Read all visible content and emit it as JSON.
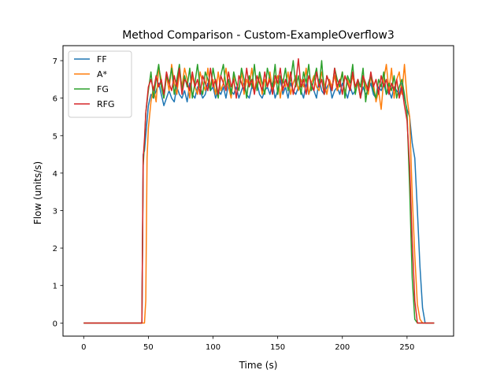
{
  "chart_data": {
    "type": "line",
    "title": "Method Comparison - Custom-ExampleOverflow3",
    "xlabel": "Time (s)",
    "ylabel": "Flow (units/s)",
    "xlim": [
      -16,
      286
    ],
    "ylim": [
      -0.35,
      7.4
    ],
    "xticks": [
      0,
      50,
      100,
      150,
      200,
      250
    ],
    "yticks": [
      0,
      1,
      2,
      3,
      4,
      5,
      6,
      7
    ],
    "grid": false,
    "legend_position": "top-left",
    "series": [
      {
        "name": "FF",
        "color": "#1f77b4",
        "x": [
          0,
          45,
          46,
          47,
          48,
          50,
          52,
          54,
          56,
          58,
          60,
          62,
          64,
          66,
          68,
          70,
          72,
          74,
          76,
          78,
          80,
          82,
          84,
          86,
          88,
          90,
          92,
          94,
          96,
          98,
          100,
          102,
          104,
          106,
          108,
          110,
          112,
          114,
          116,
          118,
          120,
          122,
          124,
          126,
          128,
          130,
          132,
          134,
          136,
          138,
          140,
          142,
          144,
          146,
          148,
          150,
          152,
          154,
          156,
          158,
          160,
          162,
          164,
          166,
          168,
          170,
          172,
          174,
          176,
          178,
          180,
          182,
          184,
          186,
          188,
          190,
          192,
          194,
          196,
          198,
          200,
          202,
          204,
          206,
          208,
          210,
          212,
          214,
          216,
          218,
          220,
          222,
          224,
          226,
          228,
          230,
          232,
          234,
          236,
          238,
          240,
          242,
          244,
          246,
          248,
          250,
          252,
          254,
          256,
          258,
          260,
          262,
          264,
          266,
          268,
          271
        ],
        "y": [
          0,
          0,
          4.5,
          4.6,
          5.0,
          5.8,
          6.1,
          6.0,
          6.2,
          6.4,
          6.1,
          5.8,
          6.0,
          6.2,
          6.0,
          5.9,
          6.3,
          6.1,
          6.0,
          6.2,
          5.9,
          6.4,
          6.1,
          6.0,
          6.3,
          6.2,
          6.0,
          6.1,
          6.4,
          6.2,
          6.3,
          6.0,
          6.2,
          6.1,
          6.3,
          6.0,
          6.4,
          6.2,
          6.1,
          6.3,
          6.0,
          6.2,
          6.4,
          6.1,
          6.0,
          6.3,
          6.2,
          6.4,
          6.1,
          6.0,
          6.2,
          6.3,
          6.1,
          6.4,
          6.0,
          6.2,
          6.5,
          6.1,
          6.3,
          6.0,
          6.4,
          6.2,
          6.1,
          6.3,
          6.2,
          6.0,
          6.4,
          6.1,
          6.3,
          6.2,
          6.0,
          6.5,
          6.2,
          6.1,
          6.3,
          6.4,
          6.0,
          6.2,
          6.3,
          6.1,
          6.4,
          6.2,
          6.0,
          6.3,
          6.1,
          6.2,
          6.4,
          6.0,
          6.3,
          6.1,
          6.2,
          6.4,
          6.1,
          6.0,
          6.3,
          6.2,
          6.4,
          6.1,
          6.2,
          6.0,
          6.3,
          6.2,
          6.1,
          6.4,
          6.0,
          5.7,
          5.5,
          4.8,
          4.4,
          3.0,
          1.5,
          0.4,
          0,
          0,
          0,
          0
        ]
      },
      {
        "name": "A*",
        "color": "#ff7f0e",
        "x": [
          0,
          47,
          48,
          49,
          50,
          52,
          54,
          56,
          58,
          60,
          62,
          64,
          66,
          68,
          70,
          72,
          74,
          76,
          78,
          80,
          82,
          84,
          86,
          88,
          90,
          92,
          94,
          96,
          98,
          100,
          102,
          104,
          106,
          108,
          110,
          112,
          114,
          116,
          118,
          120,
          122,
          124,
          126,
          128,
          130,
          132,
          134,
          136,
          138,
          140,
          142,
          144,
          146,
          148,
          150,
          152,
          154,
          156,
          158,
          160,
          162,
          164,
          166,
          168,
          170,
          172,
          174,
          176,
          178,
          180,
          182,
          184,
          186,
          188,
          190,
          192,
          194,
          196,
          198,
          200,
          202,
          204,
          206,
          208,
          210,
          212,
          214,
          216,
          218,
          220,
          222,
          224,
          226,
          228,
          230,
          232,
          234,
          236,
          238,
          240,
          242,
          244,
          246,
          248,
          250,
          252,
          254,
          256,
          258,
          260,
          262,
          264,
          266,
          268,
          271
        ],
        "y": [
          0,
          0,
          0.6,
          4.4,
          5.2,
          5.9,
          6.3,
          5.9,
          6.8,
          6.5,
          6.0,
          6.6,
          6.2,
          6.9,
          6.4,
          6.1,
          6.7,
          6.3,
          6.8,
          6.5,
          6.0,
          6.6,
          6.3,
          6.1,
          6.7,
          6.4,
          6.2,
          6.8,
          6.3,
          6.5,
          6.1,
          6.7,
          6.2,
          6.4,
          6.8,
          6.3,
          6.0,
          6.6,
          6.4,
          6.2,
          6.7,
          6.1,
          6.5,
          6.3,
          6.8,
          6.2,
          6.4,
          6.6,
          6.1,
          6.5,
          6.3,
          6.7,
          6.2,
          6.4,
          6.6,
          6.0,
          6.5,
          6.3,
          6.7,
          6.1,
          6.4,
          6.6,
          6.2,
          6.5,
          6.3,
          6.8,
          6.1,
          6.4,
          6.6,
          6.3,
          6.2,
          6.7,
          6.4,
          6.1,
          6.5,
          6.3,
          6.6,
          6.2,
          6.4,
          6.7,
          6.1,
          6.5,
          6.3,
          6.6,
          6.2,
          6.4,
          6.0,
          6.5,
          6.3,
          6.1,
          6.6,
          6.4,
          5.9,
          6.2,
          5.7,
          6.5,
          6.9,
          6.2,
          6.8,
          6.0,
          6.5,
          6.7,
          6.1,
          6.9,
          6.0,
          5.5,
          3.4,
          1.8,
          0.5,
          0.1,
          0,
          0,
          0,
          0,
          0
        ]
      },
      {
        "name": "FG",
        "color": "#2ca02c",
        "x": [
          0,
          45,
          46,
          47,
          48,
          50,
          52,
          54,
          56,
          58,
          60,
          62,
          64,
          66,
          68,
          70,
          72,
          74,
          76,
          78,
          80,
          82,
          84,
          86,
          88,
          90,
          92,
          94,
          96,
          98,
          100,
          102,
          104,
          106,
          108,
          110,
          112,
          114,
          116,
          118,
          120,
          122,
          124,
          126,
          128,
          130,
          132,
          134,
          136,
          138,
          140,
          142,
          144,
          146,
          148,
          150,
          152,
          154,
          156,
          158,
          160,
          162,
          164,
          166,
          168,
          170,
          172,
          174,
          176,
          178,
          180,
          182,
          184,
          186,
          188,
          190,
          192,
          194,
          196,
          198,
          200,
          202,
          204,
          206,
          208,
          210,
          212,
          214,
          216,
          218,
          220,
          222,
          224,
          226,
          228,
          230,
          232,
          234,
          236,
          238,
          240,
          242,
          244,
          246,
          248,
          250,
          252,
          254,
          256,
          258,
          260,
          262,
          264,
          266,
          268,
          271
        ],
        "y": [
          0,
          0,
          4.2,
          4.8,
          5.6,
          6.2,
          6.7,
          6.0,
          6.5,
          6.9,
          6.3,
          6.0,
          6.6,
          6.4,
          6.8,
          6.1,
          6.5,
          6.9,
          6.2,
          6.6,
          6.3,
          6.8,
          6.0,
          6.4,
          6.9,
          6.3,
          6.1,
          6.7,
          6.5,
          6.2,
          6.8,
          6.4,
          6.0,
          6.6,
          6.9,
          6.3,
          6.5,
          6.1,
          6.7,
          6.4,
          6.2,
          6.8,
          6.5,
          6.0,
          6.6,
          6.3,
          6.9,
          6.2,
          6.7,
          6.4,
          6.1,
          6.8,
          6.5,
          6.3,
          6.9,
          6.1,
          6.6,
          6.4,
          6.8,
          6.2,
          6.5,
          7.0,
          6.3,
          6.6,
          6.1,
          6.7,
          6.4,
          6.9,
          6.2,
          6.5,
          6.8,
          6.3,
          7.0,
          6.1,
          6.6,
          6.4,
          6.2,
          6.8,
          6.5,
          6.3,
          6.7,
          6.0,
          6.6,
          6.4,
          6.9,
          6.1,
          6.5,
          6.3,
          6.8,
          5.9,
          6.4,
          6.6,
          6.2,
          6.0,
          6.5,
          6.3,
          6.7,
          6.1,
          6.4,
          6.2,
          6.6,
          6.0,
          6.3,
          6.5,
          6.1,
          5.6,
          3.6,
          1.2,
          0.1,
          0,
          0,
          0,
          0,
          0,
          0,
          0
        ]
      },
      {
        "name": "RFG",
        "color": "#d62728",
        "x": [
          0,
          45,
          46,
          47,
          48,
          50,
          52,
          54,
          56,
          58,
          60,
          62,
          64,
          66,
          68,
          70,
          72,
          74,
          76,
          78,
          80,
          82,
          84,
          86,
          88,
          90,
          92,
          94,
          96,
          98,
          100,
          102,
          104,
          106,
          108,
          110,
          112,
          114,
          116,
          118,
          120,
          122,
          124,
          126,
          128,
          130,
          132,
          134,
          136,
          138,
          140,
          142,
          144,
          146,
          148,
          150,
          152,
          154,
          156,
          158,
          160,
          162,
          164,
          166,
          168,
          170,
          172,
          174,
          176,
          178,
          180,
          182,
          184,
          186,
          188,
          190,
          192,
          194,
          196,
          198,
          200,
          202,
          204,
          206,
          208,
          210,
          212,
          214,
          216,
          218,
          220,
          222,
          224,
          226,
          228,
          230,
          232,
          234,
          236,
          238,
          240,
          242,
          244,
          246,
          248,
          250,
          252,
          254,
          256,
          258,
          260,
          262,
          264,
          266,
          268,
          271
        ],
        "y": [
          0,
          0,
          4.4,
          4.9,
          5.6,
          6.3,
          6.5,
          6.2,
          6.6,
          6.3,
          6.5,
          6.1,
          6.7,
          6.4,
          6.2,
          6.6,
          6.3,
          6.8,
          6.1,
          6.5,
          6.4,
          6.2,
          6.7,
          6.3,
          6.5,
          6.1,
          6.6,
          6.4,
          6.2,
          6.8,
          6.3,
          6.5,
          6.1,
          6.6,
          6.4,
          6.2,
          6.7,
          6.3,
          6.5,
          6.0,
          6.6,
          6.4,
          6.2,
          6.8,
          6.3,
          6.5,
          6.1,
          6.6,
          6.4,
          6.2,
          6.7,
          6.3,
          6.5,
          6.1,
          6.6,
          6.4,
          6.8,
          6.2,
          6.5,
          6.3,
          6.7,
          6.1,
          6.4,
          7.05,
          6.3,
          6.5,
          6.1,
          6.6,
          6.4,
          6.2,
          6.7,
          6.3,
          6.5,
          6.1,
          6.6,
          6.4,
          6.2,
          6.8,
          6.3,
          6.5,
          6.1,
          6.6,
          6.4,
          6.2,
          6.7,
          6.3,
          6.5,
          6.0,
          6.6,
          6.4,
          6.2,
          6.7,
          6.3,
          6.5,
          6.1,
          6.6,
          6.3,
          6.5,
          6.1,
          6.4,
          6.2,
          6.5,
          6.0,
          6.3,
          5.8,
          5.4,
          4.2,
          2.2,
          0.6,
          0,
          0,
          0,
          0,
          0,
          0,
          0
        ]
      }
    ]
  }
}
